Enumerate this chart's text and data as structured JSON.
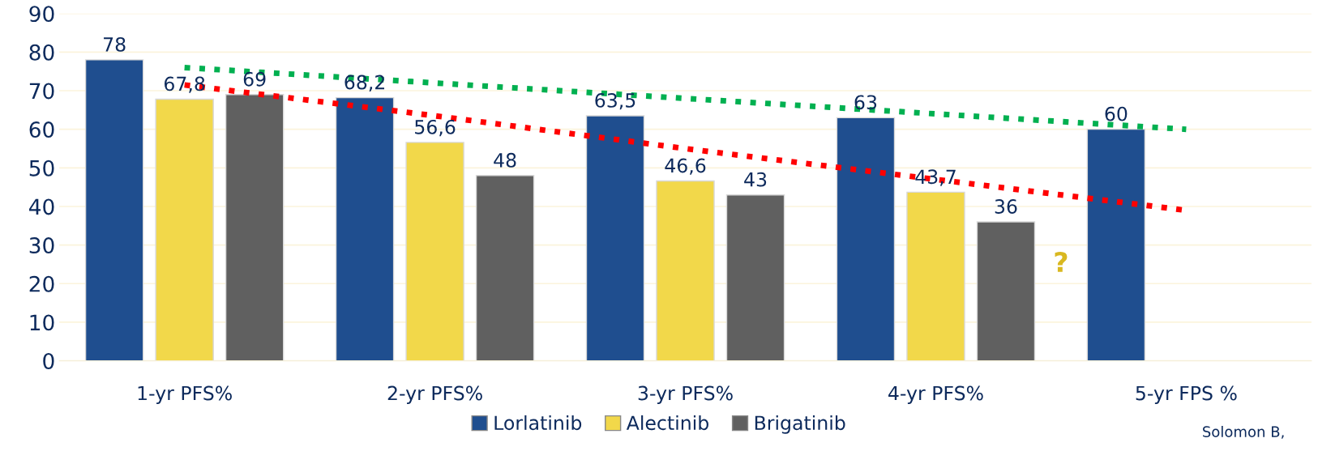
{
  "chart_data": {
    "type": "bar",
    "categories": [
      "1-yr PFS%",
      "2-yr PFS%",
      "3-yr PFS%",
      "4-yr PFS%",
      "5-yr FPS %"
    ],
    "series": [
      {
        "name": "Lorlatinib",
        "color": "#1f4e8f",
        "values": [
          78,
          68.2,
          63.5,
          63,
          60
        ],
        "value_labels": [
          "78",
          "68,2",
          "63,5",
          "63",
          "60"
        ]
      },
      {
        "name": "Alectinib",
        "color": "#f2d84a",
        "values": [
          67.8,
          56.6,
          46.6,
          43.7,
          null
        ],
        "value_labels": [
          "67,8",
          "56,6",
          "46,6",
          "43,7",
          null
        ]
      },
      {
        "name": "Brigatinib",
        "color": "#606060",
        "values": [
          69,
          48,
          43,
          36,
          null
        ],
        "value_labels": [
          "69",
          "48",
          "43",
          "36",
          null
        ]
      },
      {
        "type": "line",
        "color": "#00b050",
        "line_style": "dotted",
        "values": [
          76,
          72,
          68,
          64,
          60
        ]
      },
      {
        "type": "line",
        "color": "#ff0000",
        "line_style": "dotted",
        "values": [
          71.5,
          63.5,
          55,
          47,
          39
        ]
      }
    ],
    "ylim": [
      0,
      90
    ],
    "yticks": [
      0,
      10,
      20,
      30,
      40,
      50,
      60,
      70,
      80,
      90
    ],
    "grid": "y",
    "legend": "bottom",
    "annotations": [
      "?",
      "Solomon B,"
    ]
  }
}
